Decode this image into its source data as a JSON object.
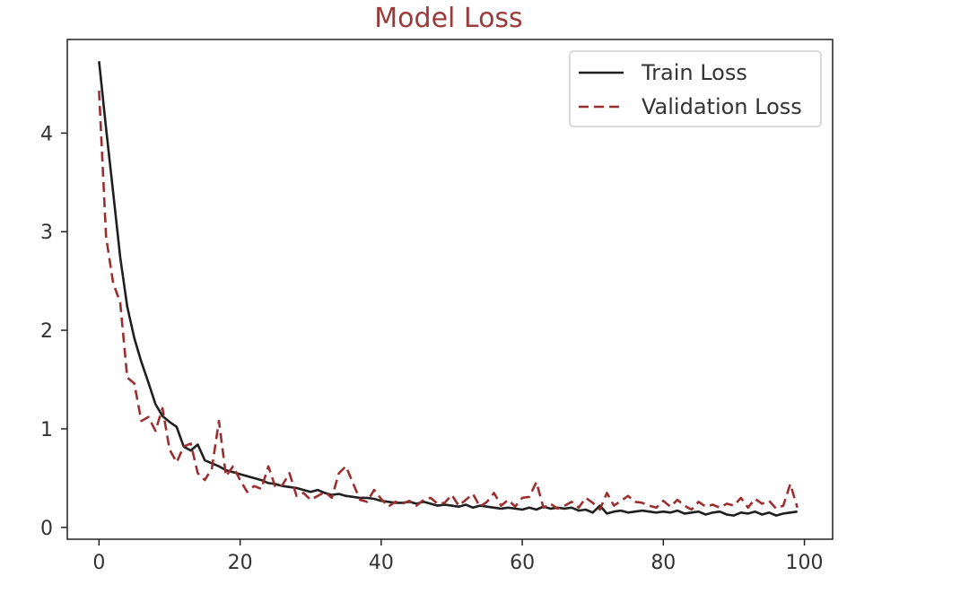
{
  "chart_data": {
    "type": "line",
    "title": "Model Loss",
    "xlabel": "",
    "ylabel": "",
    "xlim": [
      -4.5,
      104
    ],
    "ylim": [
      -0.12,
      4.95
    ],
    "x_ticks": [
      0,
      20,
      40,
      60,
      80,
      100
    ],
    "y_ticks": [
      0,
      1,
      2,
      3,
      4
    ],
    "grid": false,
    "legend_position": "top-right",
    "colors": {
      "train": "#1f1f1f",
      "validation": "#9b2f2f",
      "title": "#9b3a3a",
      "axes": "#222222"
    },
    "series": [
      {
        "name": "Train Loss",
        "style": "solid",
        "x": [
          0,
          1,
          2,
          3,
          4,
          5,
          6,
          7,
          8,
          9,
          10,
          11,
          12,
          13,
          14,
          15,
          16,
          17,
          18,
          19,
          20,
          21,
          22,
          23,
          24,
          25,
          26,
          27,
          28,
          29,
          30,
          31,
          32,
          33,
          34,
          35,
          36,
          37,
          38,
          39,
          40,
          41,
          42,
          43,
          44,
          45,
          46,
          47,
          48,
          49,
          50,
          51,
          52,
          53,
          54,
          55,
          56,
          57,
          58,
          59,
          60,
          61,
          62,
          63,
          64,
          65,
          66,
          67,
          68,
          69,
          70,
          71,
          72,
          73,
          74,
          75,
          76,
          77,
          78,
          79,
          80,
          81,
          82,
          83,
          84,
          85,
          86,
          87,
          88,
          89,
          90,
          91,
          92,
          93,
          94,
          95,
          96,
          97,
          98,
          99
        ],
        "values": [
          4.73,
          4.05,
          3.4,
          2.74,
          2.24,
          1.92,
          1.68,
          1.47,
          1.25,
          1.13,
          1.07,
          1.02,
          0.82,
          0.78,
          0.84,
          0.68,
          0.65,
          0.62,
          0.58,
          0.56,
          0.54,
          0.52,
          0.5,
          0.48,
          0.45,
          0.44,
          0.42,
          0.41,
          0.4,
          0.38,
          0.36,
          0.38,
          0.35,
          0.33,
          0.34,
          0.32,
          0.31,
          0.3,
          0.3,
          0.29,
          0.27,
          0.26,
          0.25,
          0.25,
          0.26,
          0.24,
          0.26,
          0.24,
          0.22,
          0.23,
          0.22,
          0.21,
          0.23,
          0.2,
          0.22,
          0.21,
          0.2,
          0.19,
          0.2,
          0.19,
          0.18,
          0.2,
          0.18,
          0.21,
          0.19,
          0.2,
          0.19,
          0.2,
          0.17,
          0.18,
          0.15,
          0.22,
          0.14,
          0.16,
          0.17,
          0.15,
          0.16,
          0.17,
          0.16,
          0.15,
          0.16,
          0.15,
          0.17,
          0.14,
          0.15,
          0.16,
          0.13,
          0.15,
          0.16,
          0.13,
          0.12,
          0.15,
          0.14,
          0.16,
          0.13,
          0.15,
          0.12,
          0.14,
          0.15,
          0.16
        ]
      },
      {
        "name": "Validation Loss",
        "style": "dashed",
        "x": [
          0,
          1,
          2,
          3,
          4,
          5,
          6,
          7,
          8,
          9,
          10,
          11,
          12,
          13,
          14,
          15,
          16,
          17,
          18,
          19,
          20,
          21,
          22,
          23,
          24,
          25,
          26,
          27,
          28,
          29,
          30,
          31,
          32,
          33,
          34,
          35,
          36,
          37,
          38,
          39,
          40,
          41,
          42,
          43,
          44,
          45,
          46,
          47,
          48,
          49,
          50,
          51,
          52,
          53,
          54,
          55,
          56,
          57,
          58,
          59,
          60,
          61,
          62,
          63,
          64,
          65,
          66,
          67,
          68,
          69,
          70,
          71,
          72,
          73,
          74,
          75,
          76,
          77,
          78,
          79,
          80,
          81,
          82,
          83,
          84,
          85,
          86,
          87,
          88,
          89,
          90,
          91,
          92,
          93,
          94,
          95,
          96,
          97,
          98,
          99
        ],
        "values": [
          4.43,
          2.95,
          2.48,
          2.28,
          1.52,
          1.46,
          1.08,
          1.12,
          0.98,
          1.21,
          0.79,
          0.66,
          0.82,
          0.85,
          0.55,
          0.48,
          0.6,
          1.08,
          0.52,
          0.62,
          0.48,
          0.36,
          0.42,
          0.39,
          0.62,
          0.41,
          0.43,
          0.55,
          0.32,
          0.35,
          0.28,
          0.32,
          0.36,
          0.3,
          0.55,
          0.62,
          0.45,
          0.28,
          0.26,
          0.38,
          0.29,
          0.21,
          0.26,
          0.24,
          0.27,
          0.22,
          0.28,
          0.3,
          0.24,
          0.25,
          0.33,
          0.22,
          0.28,
          0.34,
          0.21,
          0.26,
          0.35,
          0.22,
          0.28,
          0.21,
          0.3,
          0.31,
          0.46,
          0.2,
          0.24,
          0.19,
          0.22,
          0.26,
          0.2,
          0.3,
          0.25,
          0.18,
          0.35,
          0.22,
          0.27,
          0.32,
          0.26,
          0.25,
          0.22,
          0.2,
          0.27,
          0.21,
          0.28,
          0.22,
          0.18,
          0.26,
          0.21,
          0.23,
          0.2,
          0.24,
          0.22,
          0.3,
          0.2,
          0.29,
          0.24,
          0.27,
          0.19,
          0.22,
          0.44,
          0.2
        ]
      }
    ]
  }
}
